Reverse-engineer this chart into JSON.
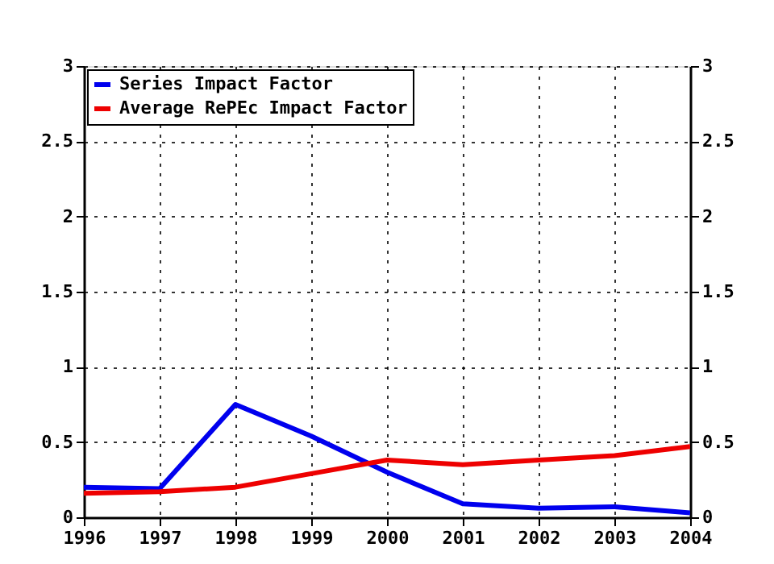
{
  "chart_data": {
    "type": "line",
    "x": [
      1996,
      1997,
      1998,
      1999,
      2000,
      2001,
      2002,
      2003,
      2004
    ],
    "series": [
      {
        "name": "Series Impact Factor",
        "color": "#0000ee",
        "values": [
          0.2,
          0.19,
          0.75,
          0.54,
          0.3,
          0.09,
          0.06,
          0.07,
          0.03
        ]
      },
      {
        "name": "Average RePEc Impact Factor",
        "color": "#ee0000",
        "values": [
          0.16,
          0.17,
          0.2,
          0.29,
          0.38,
          0.35,
          0.38,
          0.41,
          0.47
        ]
      }
    ],
    "xlim": [
      1996,
      2004
    ],
    "xticks": [
      1996,
      1997,
      1998,
      1999,
      2000,
      2001,
      2002,
      2003,
      2004
    ],
    "ylim": [
      0,
      3
    ],
    "yticks": [
      0,
      0.5,
      1,
      1.5,
      2,
      2.5,
      3
    ],
    "y2lim": [
      0,
      3
    ],
    "y2ticks": [
      0,
      0.5,
      1,
      1.5,
      2,
      2.5,
      3
    ],
    "grid": true,
    "legend": "top left",
    "line_style": "solid",
    "marker": "none"
  }
}
